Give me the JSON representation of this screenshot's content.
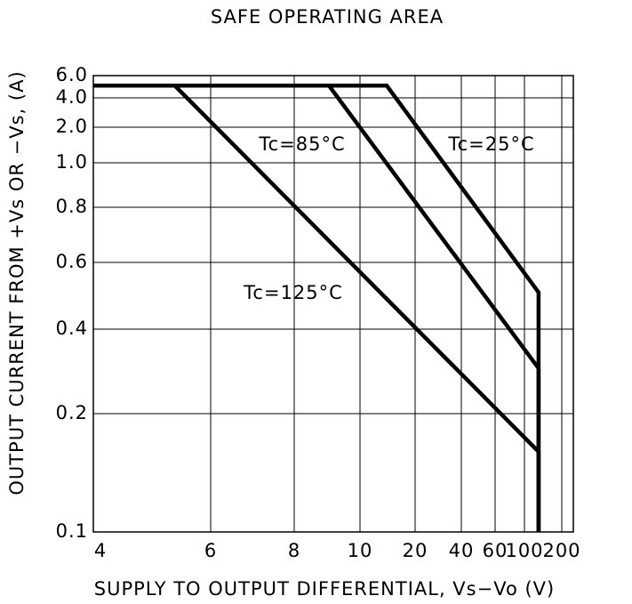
{
  "chart_data": {
    "type": "line",
    "title": "SAFE OPERATING AREA",
    "x_label": "SUPPLY TO OUTPUT DIFFERENTIAL, Vs−Vo (V)",
    "y_label": "OUTPUT CURRENT FROM +Vs OR −Vs, (A)",
    "log_scale": true,
    "grid": true,
    "xlim": [
      4,
      200
    ],
    "ylim": [
      0.1,
      6.0
    ],
    "xticks": [
      4,
      6,
      8,
      10,
      20,
      40,
      60,
      100,
      200
    ],
    "yticks": [
      0.1,
      0.2,
      0.4,
      0.6,
      0.8,
      {
        "value": 1,
        "label": "1.0"
      },
      {
        "value": 2,
        "label": "2.0"
      },
      {
        "value": 4,
        "label": "4.0"
      },
      {
        "value": 6,
        "label": "6.0"
      }
    ],
    "series": [
      {
        "name": "Tc=25°C",
        "color": "#000000",
        "x": [
          4,
          14,
          130,
          130
        ],
        "values": [
          5.0,
          5.0,
          0.5,
          0.1
        ]
      },
      {
        "name": "Tc=85°C",
        "color": "#000000",
        "x": [
          4,
          9,
          130,
          130
        ],
        "values": [
          5.0,
          5.0,
          0.29,
          0.1
        ]
      },
      {
        "name": "Tc=125°C",
        "color": "#000000",
        "x": [
          4,
          5.3,
          130,
          130
        ],
        "values": [
          5.0,
          5.0,
          0.16,
          0.1
        ]
      }
    ]
  }
}
